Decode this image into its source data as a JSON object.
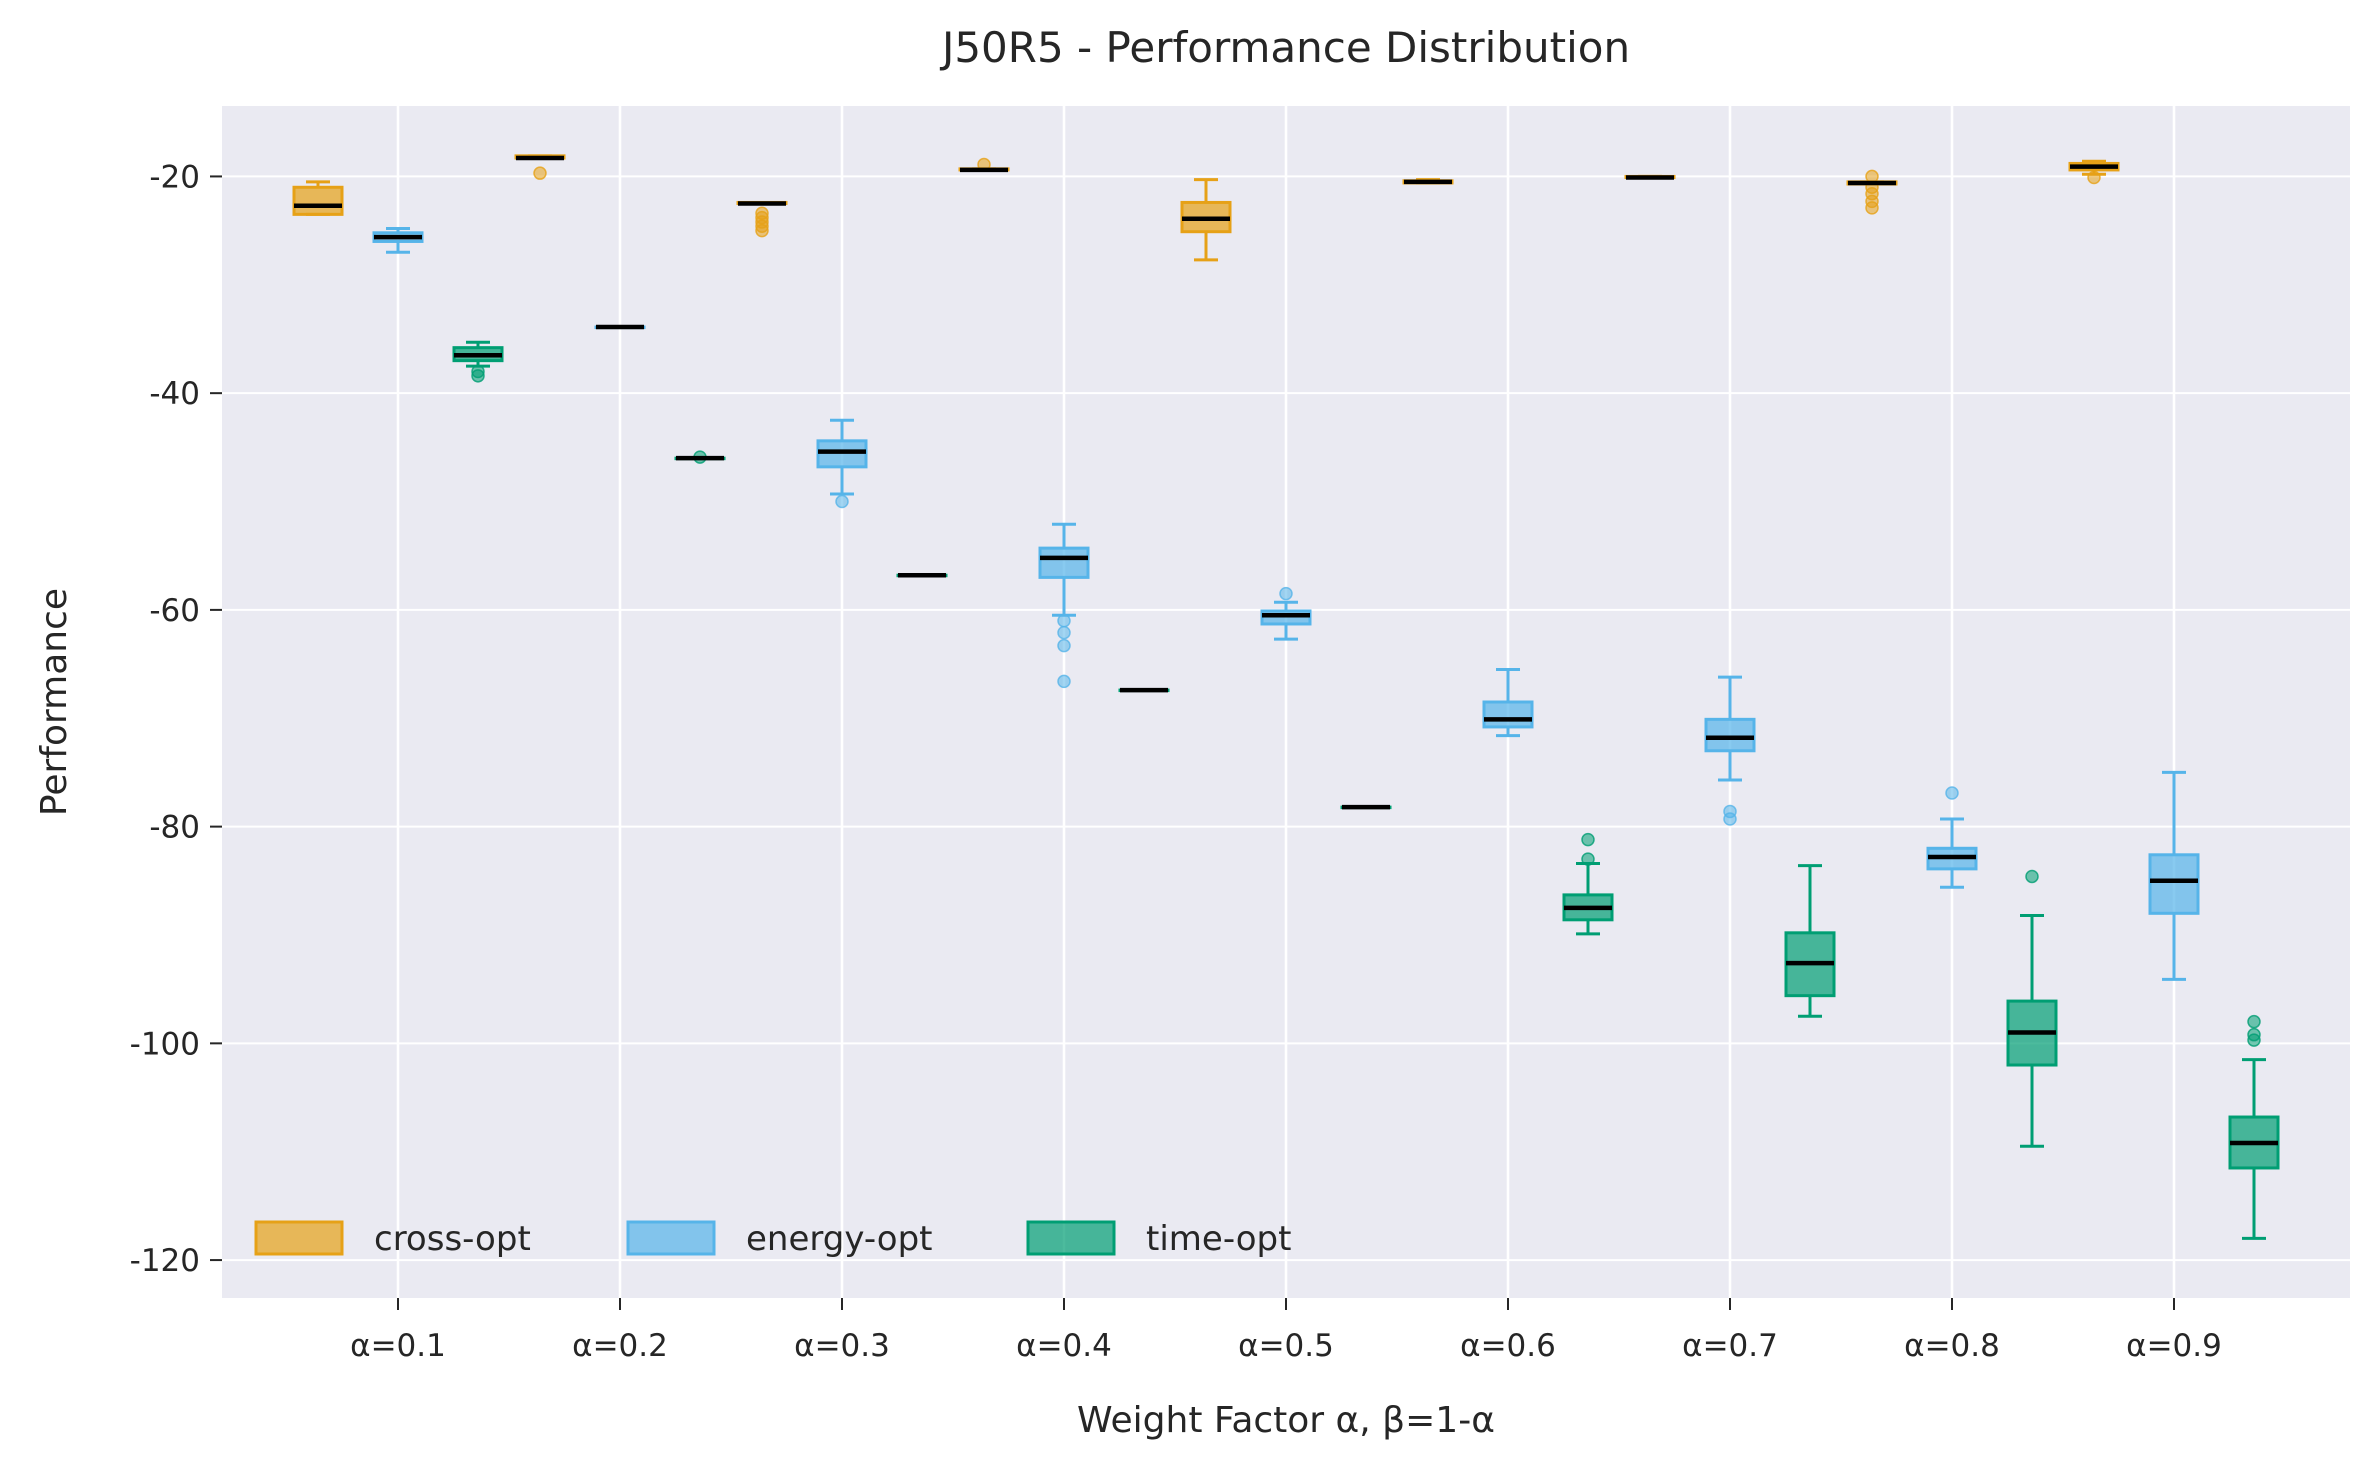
{
  "chart_data": {
    "type": "box",
    "title": "J50R5 - Performance Distribution",
    "xlabel": "Weight Factor α, β=1-α",
    "ylabel": "Performance",
    "categories": [
      "α=0.1",
      "α=0.2",
      "α=0.3",
      "α=0.4",
      "α=0.5",
      "α=0.6",
      "α=0.7",
      "α=0.8",
      "α=0.9"
    ],
    "y_ticks": [
      -20,
      -40,
      -60,
      -80,
      -100,
      -120
    ],
    "y_tick_labels": [
      "-20",
      "-40",
      "-60",
      "-80",
      "-100",
      "-120"
    ],
    "ylim": [
      -123.5,
      -13.5
    ],
    "grid": true,
    "legend_position": "lower-left",
    "colors": {
      "background": "#eaeaf2",
      "grid": "#ffffff",
      "median": "#000000"
    },
    "series": [
      {
        "name": "cross-opt",
        "color": "#e6a117",
        "boxes": [
          {
            "min": -23.5,
            "q1": -23.5,
            "median": -22.7,
            "q3": -21.0,
            "max": -20.5,
            "fliers": []
          },
          {
            "min": -18.3,
            "q1": -18.3,
            "median": -18.3,
            "q3": -18.1,
            "max": -18.1,
            "fliers": [
              -19.7
            ]
          },
          {
            "min": -22.5,
            "q1": -22.5,
            "median": -22.5,
            "q3": -22.4,
            "max": -22.4,
            "fliers": [
              -23.4,
              -23.8,
              -24.2,
              -24.6,
              -25.0
            ]
          },
          {
            "min": -19.4,
            "q1": -19.4,
            "median": -19.4,
            "q3": -19.3,
            "max": -19.3,
            "fliers": [
              -18.9
            ]
          },
          {
            "min": -27.7,
            "q1": -25.1,
            "median": -23.9,
            "q3": -22.4,
            "max": -20.3,
            "fliers": []
          },
          {
            "min": -20.6,
            "q1": -20.6,
            "median": -20.5,
            "q3": -20.4,
            "max": -20.3,
            "fliers": []
          },
          {
            "min": -20.1,
            "q1": -20.1,
            "median": -20.1,
            "q3": -20.0,
            "max": -20.0,
            "fliers": []
          },
          {
            "min": -20.7,
            "q1": -20.7,
            "median": -20.6,
            "q3": -20.5,
            "max": -20.5,
            "fliers": [
              -20.0,
              -21.0,
              -21.6,
              -22.3,
              -22.9
            ]
          },
          {
            "min": -19.8,
            "q1": -19.4,
            "median": -19.1,
            "q3": -18.8,
            "max": -18.6,
            "fliers": [
              -20.1
            ]
          }
        ]
      },
      {
        "name": "energy-opt",
        "color": "#56b4e9",
        "boxes": [
          {
            "min": -27.0,
            "q1": -26.0,
            "median": -25.6,
            "q3": -25.2,
            "max": -24.8,
            "fliers": []
          },
          {
            "min": -33.9,
            "q1": -33.9,
            "median": -33.9,
            "q3": -33.9,
            "max": -33.9,
            "fliers": []
          },
          {
            "min": -49.3,
            "q1": -46.8,
            "median": -45.4,
            "q3": -44.4,
            "max": -42.5,
            "fliers": [
              -50.0
            ]
          },
          {
            "min": -60.5,
            "q1": -57.0,
            "median": -55.2,
            "q3": -54.3,
            "max": -52.1,
            "fliers": [
              -61.0,
              -62.1,
              -63.3,
              -66.6
            ]
          },
          {
            "min": -62.7,
            "q1": -61.3,
            "median": -60.5,
            "q3": -60.1,
            "max": -59.3,
            "fliers": [
              -58.5
            ]
          },
          {
            "min": -71.6,
            "q1": -70.8,
            "median": -70.1,
            "q3": -68.5,
            "max": -65.5,
            "fliers": []
          },
          {
            "min": -75.7,
            "q1": -73.0,
            "median": -71.8,
            "q3": -70.1,
            "max": -66.2,
            "fliers": [
              -78.6,
              -79.3
            ]
          },
          {
            "min": -85.6,
            "q1": -83.9,
            "median": -82.8,
            "q3": -82.0,
            "max": -79.3,
            "fliers": [
              -76.9
            ]
          },
          {
            "min": -94.1,
            "q1": -88.0,
            "median": -85.0,
            "q3": -82.6,
            "max": -75.0,
            "fliers": []
          }
        ]
      },
      {
        "name": "time-opt",
        "color": "#009e73",
        "boxes": [
          {
            "min": -37.5,
            "q1": -37.0,
            "median": -36.5,
            "q3": -35.8,
            "max": -35.3,
            "fliers": [
              -38.0,
              -38.4
            ]
          },
          {
            "min": -46.0,
            "q1": -46.0,
            "median": -46.0,
            "q3": -46.0,
            "max": -46.0,
            "fliers": [
              -45.9
            ]
          },
          {
            "min": -56.8,
            "q1": -56.8,
            "median": -56.8,
            "q3": -56.8,
            "max": -56.8,
            "fliers": []
          },
          {
            "min": -67.4,
            "q1": -67.4,
            "median": -67.4,
            "q3": -67.4,
            "max": -67.4,
            "fliers": []
          },
          {
            "min": -78.2,
            "q1": -78.2,
            "median": -78.2,
            "q3": -78.2,
            "max": -78.2,
            "fliers": []
          },
          {
            "min": -89.9,
            "q1": -88.6,
            "median": -87.5,
            "q3": -86.3,
            "max": -83.4,
            "fliers": [
              -81.2,
              -83.0
            ]
          },
          {
            "min": -97.5,
            "q1": -95.6,
            "median": -92.6,
            "q3": -89.8,
            "max": -83.6,
            "fliers": []
          },
          {
            "min": -109.5,
            "q1": -102.0,
            "median": -99.0,
            "q3": -96.1,
            "max": -88.2,
            "fliers": [
              -84.6
            ]
          },
          {
            "min": -118.0,
            "q1": -111.5,
            "median": -109.2,
            "q3": -106.8,
            "max": -101.5,
            "fliers": [
              -98.0,
              -99.2,
              -99.7
            ]
          }
        ]
      }
    ]
  }
}
